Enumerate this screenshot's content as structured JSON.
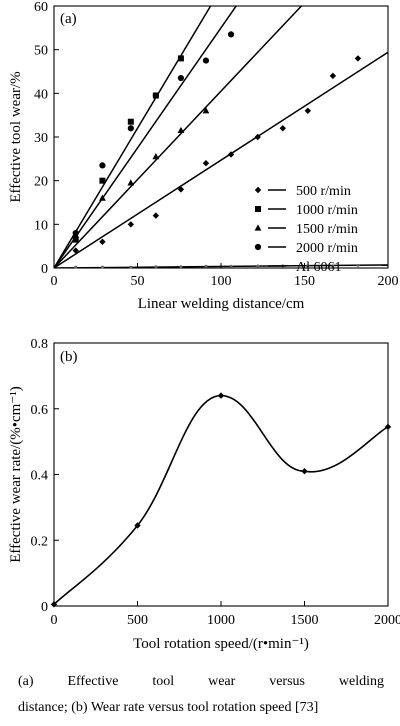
{
  "chart_data": [
    {
      "type": "scatter",
      "panel_label": "(a)",
      "xlabel": "Linear welding distance/cm",
      "ylabel": "Effective tool wear/%",
      "xlim": [
        0,
        200
      ],
      "ylim": [
        0,
        60
      ],
      "xticks": [
        0,
        50,
        100,
        150,
        200
      ],
      "yticks": [
        0,
        10,
        20,
        30,
        40,
        50,
        60
      ],
      "grid": false,
      "legend_position": "bottom-right",
      "series": [
        {
          "name": "500 r/min",
          "marker": "diamond",
          "x": [
            13,
            29,
            46,
            61,
            76,
            91,
            106,
            122,
            137,
            152,
            167,
            182
          ],
          "y": [
            4,
            6,
            10,
            12,
            18,
            24,
            26,
            30,
            32,
            36,
            44,
            48
          ],
          "fit_slope": 0.247
        },
        {
          "name": "1000 r/min",
          "marker": "square",
          "x": [
            13,
            29,
            46,
            61,
            76
          ],
          "y": [
            6.5,
            20,
            33.5,
            39.5,
            48
          ],
          "fit_slope": 0.64
        },
        {
          "name": "1500 r/min",
          "marker": "triangle",
          "x": [
            13,
            29,
            46,
            61,
            76,
            91
          ],
          "y": [
            7.5,
            16,
            19.5,
            25.5,
            31.5,
            36
          ],
          "fit_slope": 0.405
        },
        {
          "name": "2000 r/min",
          "marker": "circle",
          "x": [
            13,
            29,
            46,
            61,
            76,
            91,
            106
          ],
          "y": [
            8,
            23.5,
            32,
            39.5,
            43.5,
            47.5,
            53.5
          ],
          "fit_slope": 0.55
        },
        {
          "name": "Al 6061",
          "marker": "star",
          "x": [
            13,
            29,
            46,
            61,
            76,
            91,
            106,
            122,
            137,
            152,
            167,
            182
          ],
          "y": [
            0.2,
            0.2,
            0.2,
            0.3,
            0.3,
            0.4,
            0.4,
            0.4,
            0.5,
            0.5,
            0.5,
            0.6
          ],
          "fit_slope": 0.0035
        }
      ]
    },
    {
      "type": "line",
      "panel_label": "(b)",
      "xlabel": "Tool rotation speed/(r•min⁻¹)",
      "ylabel": "Effective wear rate/(%•cm⁻¹)",
      "xlim": [
        0,
        2000
      ],
      "ylim": [
        0,
        0.8
      ],
      "xticks": [
        0,
        500,
        1000,
        1500,
        2000
      ],
      "yticks": [
        0,
        0.2,
        0.4,
        0.6,
        0.8
      ],
      "ytick_labels": [
        "0",
        "0.2",
        "0.4",
        "0.6",
        "0.8"
      ],
      "grid": false,
      "x": [
        0,
        500,
        1000,
        1500,
        2000
      ],
      "y": [
        0.005,
        0.245,
        0.64,
        0.41,
        0.545
      ]
    }
  ],
  "caption": {
    "line1": "(a)  Effective  tool  wear  versus  welding",
    "line2": "distance; (b) Wear rate versus tool rotation speed [73]"
  }
}
